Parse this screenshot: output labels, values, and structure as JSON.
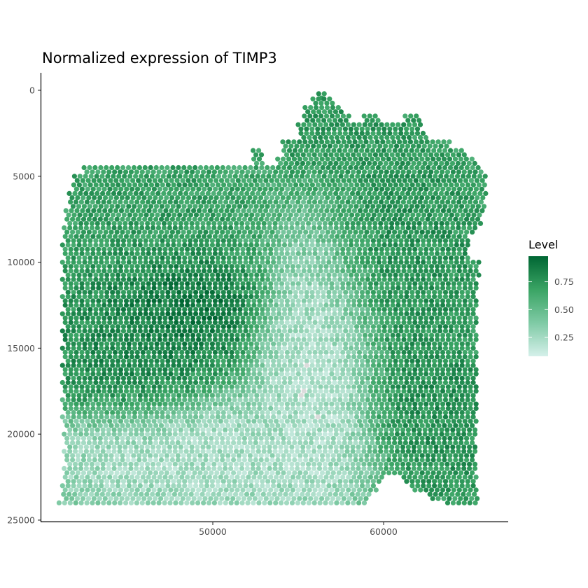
{
  "chart_data": {
    "type": "scatter",
    "title": "Normalized expression of TIMP3",
    "xlabel": "",
    "ylabel": "",
    "x_ticks": [
      50000,
      60000
    ],
    "y_ticks": [
      0,
      5000,
      10000,
      15000,
      20000,
      25000
    ],
    "x_tick_labels": [
      "50000",
      "60000"
    ],
    "y_tick_labels": [
      "0",
      "5000",
      "10000",
      "15000",
      "20000",
      "25000"
    ],
    "xlim": [
      40000,
      67000
    ],
    "ylim": [
      0,
      25000
    ],
    "y_reversed": true,
    "grid": false,
    "legend": {
      "title": "Level",
      "position": "right",
      "breaks": [
        0.25,
        0.5,
        0.75
      ],
      "break_labels": [
        "0.25",
        "0.50",
        "0.75"
      ],
      "range": [
        0.08,
        0.98
      ],
      "colors": [
        "#d5f0ea",
        "#7fcaa5",
        "#3aa464",
        "#006633"
      ]
    },
    "na_color": "#dcdcdc",
    "spot_spacing": 325,
    "tissue_rows": [
      {
        "y": 200,
        "x_start": 56200,
        "x_end": 56600
      },
      {
        "y": 500,
        "x_start": 55700,
        "x_end": 57000
      },
      {
        "y": 1000,
        "x_start": 55400,
        "x_end": 57600
      },
      {
        "y": 1500,
        "x_start": 55200,
        "x_end": 58000,
        "extra": [
          [
            58700,
            59800
          ],
          [
            61100,
            62200
          ]
        ]
      },
      {
        "y": 2000,
        "x_start": 55000,
        "x_end": 62300
      },
      {
        "y": 2500,
        "x_start": 55000,
        "x_end": 62600
      },
      {
        "y": 3000,
        "x_start": 54100,
        "x_end": 64000
      },
      {
        "y": 3500,
        "x_start": 54000,
        "x_end": 64800,
        "extra": [
          [
            52200,
            53000
          ]
        ]
      },
      {
        "y": 4000,
        "x_start": 53800,
        "x_end": 65400,
        "extra": [
          [
            52400,
            52900
          ]
        ]
      },
      {
        "y": 4500,
        "x_start": 42300,
        "x_end": 65700
      },
      {
        "y": 5000,
        "x_start": 41900,
        "x_end": 66000
      },
      {
        "y": 5500,
        "x_start": 41700,
        "x_end": 66000
      },
      {
        "y": 6000,
        "x_start": 41600,
        "x_end": 66000
      },
      {
        "y": 6500,
        "x_start": 41500,
        "x_end": 65900
      },
      {
        "y": 7000,
        "x_start": 41400,
        "x_end": 65800
      },
      {
        "y": 7500,
        "x_start": 41300,
        "x_end": 65700
      },
      {
        "y": 8000,
        "x_start": 41300,
        "x_end": 65500
      },
      {
        "y": 8500,
        "x_start": 41200,
        "x_end": 65000
      },
      {
        "y": 9000,
        "x_start": 41200,
        "x_end": 65000
      },
      {
        "y": 9500,
        "x_start": 41200,
        "x_end": 65000
      },
      {
        "y": 10000,
        "x_start": 41200,
        "x_end": 65700
      },
      {
        "y": 10500,
        "x_start": 41200,
        "x_end": 65700
      },
      {
        "y": 11000,
        "x_start": 41200,
        "x_end": 65500
      },
      {
        "y": 11500,
        "x_start": 41200,
        "x_end": 65500
      },
      {
        "y": 12000,
        "x_start": 41200,
        "x_end": 65500
      },
      {
        "y": 12500,
        "x_start": 41200,
        "x_end": 65500
      },
      {
        "y": 13000,
        "x_start": 41200,
        "x_end": 65500
      },
      {
        "y": 13500,
        "x_start": 41200,
        "x_end": 65500
      },
      {
        "y": 14000,
        "x_start": 41200,
        "x_end": 65500
      },
      {
        "y": 14500,
        "x_start": 41200,
        "x_end": 65500
      },
      {
        "y": 15000,
        "x_start": 41200,
        "x_end": 65500
      },
      {
        "y": 15500,
        "x_start": 41200,
        "x_end": 65500
      },
      {
        "y": 16000,
        "x_start": 41200,
        "x_end": 65500
      },
      {
        "y": 16500,
        "x_start": 41200,
        "x_end": 65500
      },
      {
        "y": 17000,
        "x_start": 41200,
        "x_end": 65500
      },
      {
        "y": 17500,
        "x_start": 41200,
        "x_end": 65500
      },
      {
        "y": 18000,
        "x_start": 41200,
        "x_end": 65500
      },
      {
        "y": 18500,
        "x_start": 41200,
        "x_end": 65500
      },
      {
        "y": 19000,
        "x_start": 41200,
        "x_end": 65500
      },
      {
        "y": 19500,
        "x_start": 41300,
        "x_end": 65500
      },
      {
        "y": 20000,
        "x_start": 41300,
        "x_end": 65500
      },
      {
        "y": 20500,
        "x_start": 41300,
        "x_end": 65500
      },
      {
        "y": 21000,
        "x_start": 41300,
        "x_end": 65500
      },
      {
        "y": 21500,
        "x_start": 41300,
        "x_end": 65500
      },
      {
        "y": 22000,
        "x_start": 41300,
        "x_end": 65500
      },
      {
        "y": 22500,
        "x_start": 41200,
        "x_end": 65500,
        "gap": [
          60000,
          61000
        ]
      },
      {
        "y": 23000,
        "x_start": 41200,
        "x_end": 65500,
        "gap": [
          59700,
          61600
        ]
      },
      {
        "y": 23500,
        "x_start": 41100,
        "x_end": 65500,
        "gap": [
          59200,
          62400
        ]
      },
      {
        "y": 24000,
        "x_start": 41000,
        "x_end": 65500,
        "gap": [
          59000,
          63500
        ]
      }
    ],
    "expression_regions": [
      {
        "label": "upper-left high",
        "cx": 46000,
        "cy": 7500,
        "rx": 6000,
        "ry": 4500,
        "level": 0.72
      },
      {
        "label": "center-left very high",
        "cx": 48000,
        "cy": 12500,
        "rx": 4000,
        "ry": 3000,
        "level": 0.95
      },
      {
        "label": "left-middle high",
        "cx": 45000,
        "cy": 14500,
        "rx": 4500,
        "ry": 4000,
        "level": 0.82
      },
      {
        "label": "right high band",
        "cx": 61500,
        "cy": 10000,
        "rx": 4500,
        "ry": 7000,
        "level": 0.78
      },
      {
        "label": "top lobe",
        "cx": 57000,
        "cy": 2500,
        "rx": 4500,
        "ry": 2500,
        "level": 0.75
      },
      {
        "label": "lower-right high",
        "cx": 62800,
        "cy": 19500,
        "rx": 3500,
        "ry": 5000,
        "level": 0.8
      },
      {
        "label": "central low",
        "cx": 56500,
        "cy": 15500,
        "rx": 3000,
        "ry": 6500,
        "level": 0.18
      },
      {
        "label": "bottom low",
        "cx": 50000,
        "cy": 21500,
        "rx": 9000,
        "ry": 2800,
        "level": 0.22
      }
    ]
  }
}
